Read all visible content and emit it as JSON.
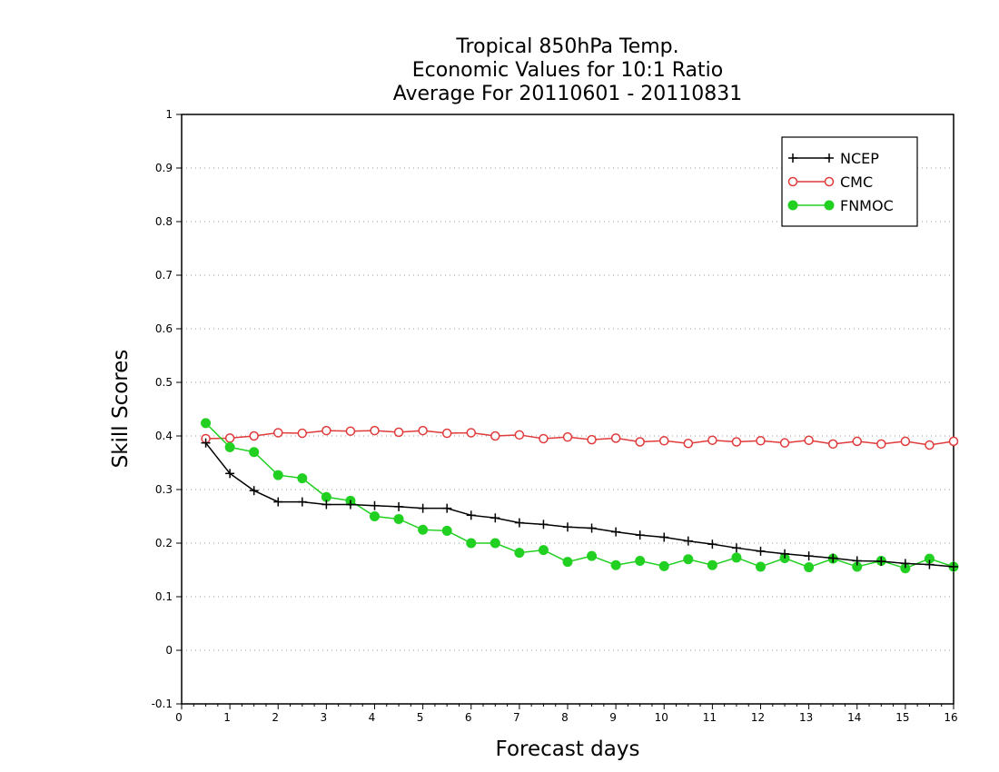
{
  "chart_data": {
    "type": "line",
    "title": [
      "Tropical 850hPa Temp.",
      "Economic Values for 10:1 Ratio",
      "Average For 20110601 - 20110831"
    ],
    "xlabel": "Forecast days",
    "ylabel": "Skill Scores",
    "xlim": [
      0,
      16
    ],
    "ylim": [
      -0.1,
      1
    ],
    "xticks": [
      0,
      1,
      2,
      3,
      4,
      5,
      6,
      7,
      8,
      9,
      10,
      11,
      12,
      13,
      14,
      15,
      16
    ],
    "xtick_labels": [
      "0",
      "1",
      "2",
      "3",
      "4",
      "5",
      "6",
      "7",
      "8",
      "9",
      "10",
      "11",
      "12",
      "13",
      "14",
      "15",
      "16"
    ],
    "yticks": [
      -0.1,
      0,
      0.1,
      0.2,
      0.3,
      0.4,
      0.5,
      0.6,
      0.7,
      0.8,
      0.9,
      1
    ],
    "ytick_labels": [
      "-0.1",
      "0",
      "0.1",
      "0.2",
      "0.3",
      "0.4",
      "0.5",
      "0.6",
      "0.7",
      "0.8",
      "0.9",
      "1"
    ],
    "grid": "horizontal dotted",
    "legend_position": "top-right",
    "x": [
      0.5,
      1,
      1.5,
      2,
      2.5,
      3,
      3.5,
      4,
      4.5,
      5,
      5.5,
      6,
      6.5,
      7,
      7.5,
      8,
      8.5,
      9,
      9.5,
      10,
      10.5,
      11,
      11.5,
      12,
      12.5,
      13,
      13.5,
      14,
      14.5,
      15,
      15.5,
      16
    ],
    "series": [
      {
        "name": "NCEP",
        "color": "#000000",
        "marker": "plus",
        "values": [
          0.387,
          0.33,
          0.298,
          0.277,
          0.277,
          0.272,
          0.272,
          0.27,
          0.268,
          0.265,
          0.265,
          0.252,
          0.247,
          0.238,
          0.235,
          0.23,
          0.228,
          0.221,
          0.215,
          0.211,
          0.204,
          0.198,
          0.191,
          0.185,
          0.18,
          0.176,
          0.172,
          0.167,
          0.166,
          0.162,
          0.16,
          0.156
        ]
      },
      {
        "name": "CMC",
        "color": "#e03a3a",
        "marker": "open-circle",
        "values": [
          0.395,
          0.396,
          0.4,
          0.406,
          0.405,
          0.41,
          0.409,
          0.41,
          0.407,
          0.41,
          0.405,
          0.406,
          0.4,
          0.402,
          0.395,
          0.398,
          0.393,
          0.396,
          0.389,
          0.391,
          0.386,
          0.392,
          0.389,
          0.391,
          0.387,
          0.392,
          0.385,
          0.39,
          0.385,
          0.39,
          0.383,
          0.39
        ]
      },
      {
        "name": "FNMOC",
        "color": "#22d022",
        "marker": "filled-circle",
        "values": [
          0.424,
          0.379,
          0.37,
          0.327,
          0.321,
          0.286,
          0.279,
          0.25,
          0.245,
          0.225,
          0.223,
          0.2,
          0.2,
          0.182,
          0.187,
          0.165,
          0.176,
          0.159,
          0.167,
          0.157,
          0.17,
          0.159,
          0.173,
          0.156,
          0.172,
          0.155,
          0.171,
          0.156,
          0.167,
          0.153,
          0.171,
          0.156
        ]
      }
    ]
  }
}
